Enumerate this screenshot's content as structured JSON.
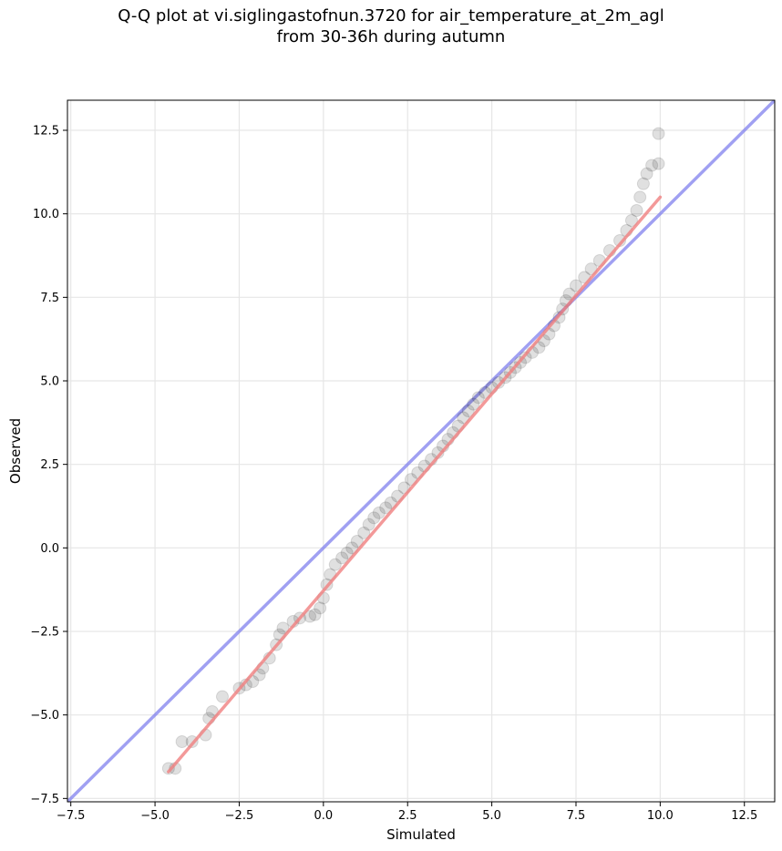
{
  "chart_data": {
    "type": "scatter",
    "title_line1": "Q-Q plot at vi.siglingastofnun.3720 for air_temperature_at_2m_agl",
    "title_line2": "from 30-36h during autumn",
    "xlabel": "Simulated",
    "ylabel": "Observed",
    "xlim": [
      -7.6,
      13.4
    ],
    "ylim": [
      -7.6,
      13.4
    ],
    "xticks": [
      -7.5,
      -5.0,
      -2.5,
      0.0,
      2.5,
      5.0,
      7.5,
      10.0,
      12.5
    ],
    "yticks": [
      -7.5,
      -5.0,
      -2.5,
      0.0,
      2.5,
      5.0,
      7.5,
      10.0,
      12.5
    ],
    "xtick_labels": [
      "−7.5",
      "−5.0",
      "−2.5",
      "0.0",
      "2.5",
      "5.0",
      "7.5",
      "10.0",
      "12.5"
    ],
    "ytick_labels": [
      "−7.5",
      "−5.0",
      "−2.5",
      "0.0",
      "2.5",
      "5.0",
      "7.5",
      "10.0",
      "12.5"
    ],
    "grid": true,
    "points": [
      [
        -4.6,
        -6.6
      ],
      [
        -4.4,
        -6.6
      ],
      [
        -4.2,
        -5.8
      ],
      [
        -3.9,
        -5.8
      ],
      [
        -3.5,
        -5.6
      ],
      [
        -3.4,
        -5.1
      ],
      [
        -3.3,
        -4.9
      ],
      [
        -3.0,
        -4.45
      ],
      [
        -2.5,
        -4.2
      ],
      [
        -2.3,
        -4.1
      ],
      [
        -2.1,
        -4.0
      ],
      [
        -1.9,
        -3.8
      ],
      [
        -1.8,
        -3.6
      ],
      [
        -1.6,
        -3.3
      ],
      [
        -1.4,
        -2.9
      ],
      [
        -1.3,
        -2.6
      ],
      [
        -1.2,
        -2.4
      ],
      [
        -0.9,
        -2.2
      ],
      [
        -0.7,
        -2.1
      ],
      [
        -0.4,
        -2.05
      ],
      [
        -0.25,
        -2.0
      ],
      [
        -0.1,
        -1.8
      ],
      [
        0.0,
        -1.5
      ],
      [
        0.1,
        -1.1
      ],
      [
        0.2,
        -0.8
      ],
      [
        0.35,
        -0.5
      ],
      [
        0.55,
        -0.3
      ],
      [
        0.7,
        -0.15
      ],
      [
        0.85,
        0.0
      ],
      [
        1.0,
        0.2
      ],
      [
        1.2,
        0.45
      ],
      [
        1.35,
        0.7
      ],
      [
        1.5,
        0.9
      ],
      [
        1.65,
        1.05
      ],
      [
        1.85,
        1.2
      ],
      [
        2.0,
        1.35
      ],
      [
        2.2,
        1.55
      ],
      [
        2.4,
        1.8
      ],
      [
        2.6,
        2.05
      ],
      [
        2.8,
        2.25
      ],
      [
        3.0,
        2.45
      ],
      [
        3.2,
        2.65
      ],
      [
        3.4,
        2.85
      ],
      [
        3.55,
        3.05
      ],
      [
        3.7,
        3.25
      ],
      [
        3.85,
        3.45
      ],
      [
        4.0,
        3.65
      ],
      [
        4.15,
        3.9
      ],
      [
        4.3,
        4.1
      ],
      [
        4.45,
        4.3
      ],
      [
        4.6,
        4.5
      ],
      [
        4.8,
        4.65
      ],
      [
        5.0,
        4.8
      ],
      [
        5.2,
        4.95
      ],
      [
        5.4,
        5.1
      ],
      [
        5.55,
        5.25
      ],
      [
        5.7,
        5.4
      ],
      [
        5.85,
        5.55
      ],
      [
        6.0,
        5.7
      ],
      [
        6.2,
        5.85
      ],
      [
        6.4,
        6.0
      ],
      [
        6.55,
        6.2
      ],
      [
        6.7,
        6.4
      ],
      [
        6.85,
        6.65
      ],
      [
        7.0,
        6.9
      ],
      [
        7.1,
        7.15
      ],
      [
        7.2,
        7.4
      ],
      [
        7.3,
        7.6
      ],
      [
        7.5,
        7.85
      ],
      [
        7.75,
        8.1
      ],
      [
        7.95,
        8.35
      ],
      [
        8.2,
        8.6
      ],
      [
        8.5,
        8.9
      ],
      [
        8.8,
        9.2
      ],
      [
        9.0,
        9.5
      ],
      [
        9.15,
        9.8
      ],
      [
        9.3,
        10.1
      ],
      [
        9.4,
        10.5
      ],
      [
        9.5,
        10.9
      ],
      [
        9.6,
        11.2
      ],
      [
        9.75,
        11.45
      ],
      [
        9.95,
        11.5
      ],
      [
        9.95,
        12.4
      ]
    ],
    "fit_line": [
      [
        -4.6,
        -6.7
      ],
      [
        10.0,
        10.5
      ]
    ],
    "identity_line": [
      [
        -7.6,
        -7.6
      ],
      [
        13.4,
        13.4
      ]
    ],
    "colors": {
      "points": "#000000",
      "fit_line": "#f08080",
      "identity_line": "#8080ee",
      "grid": "#e6e6e6"
    }
  }
}
